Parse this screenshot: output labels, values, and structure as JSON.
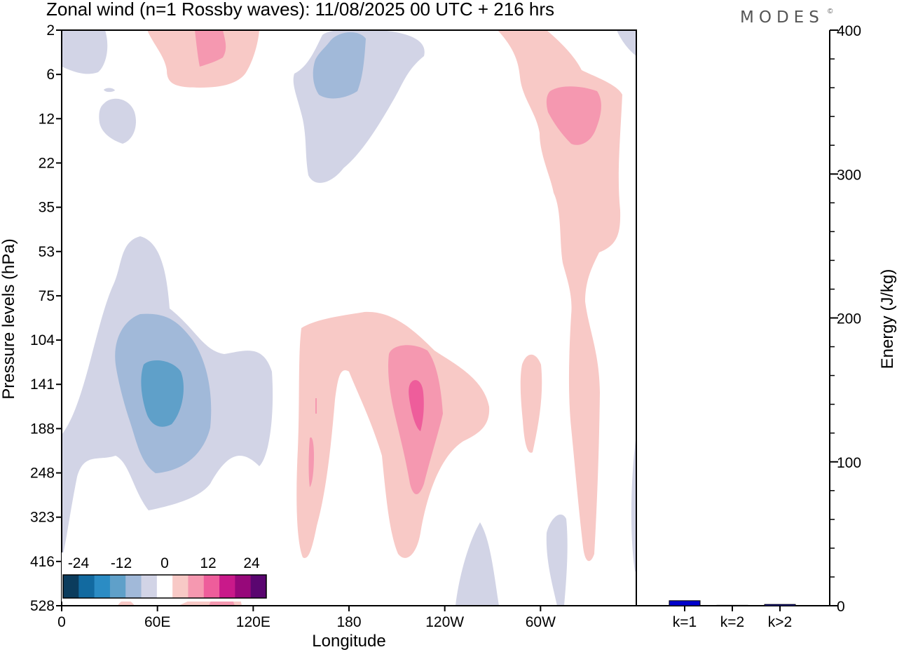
{
  "title": "Zonal wind (n=1 Rossby waves):  11/08/2025  00 UTC  + 216 hrs",
  "logo": "MODES",
  "logo_mark": "©",
  "chart_data": [
    {
      "type": "heatmap",
      "title": "Zonal wind (n=1 Rossby waves):  11/08/2025  00 UTC  + 216 hrs",
      "xlabel": "Longitude",
      "ylabel": "Pressure levels (hPa)",
      "x_ticks": [
        "0",
        "60E",
        "120E",
        "180",
        "120W",
        "60W"
      ],
      "x_tick_values": [
        0,
        60,
        120,
        180,
        240,
        300
      ],
      "xlim": [
        0,
        360
      ],
      "y_ticks": [
        "2",
        "6",
        "12",
        "22",
        "35",
        "53",
        "75",
        "104",
        "141",
        "188",
        "248",
        "323",
        "416",
        "528"
      ],
      "y_scale": "pressure levels (top 2 hPa, bottom 528 hPa)",
      "colorbar": {
        "labels": [
          "-24",
          "-12",
          "0",
          "12",
          "24"
        ],
        "colors": [
          "#0b3c5d",
          "#126aa0",
          "#2b8cc4",
          "#5fa0c9",
          "#a1b9d9",
          "#d2d4e6",
          "#ffffff",
          "#f8c9c6",
          "#f598b0",
          "#ee5d9b",
          "#c9198a",
          "#97087a",
          "#5a0670"
        ]
      },
      "regions": [
        {
          "sign": "negative",
          "level": 1,
          "lon_range": [
            0,
            125
          ],
          "p_range": [
            35,
            416
          ],
          "note": "broad easterly lobe"
        },
        {
          "sign": "negative",
          "level": 2,
          "lon_range": [
            33,
            95
          ],
          "p_range": [
            90,
            248
          ]
        },
        {
          "sign": "negative",
          "level": 3,
          "lon_range": [
            50,
            77
          ],
          "p_range": [
            125,
            188
          ],
          "note": "core"
        },
        {
          "sign": "negative",
          "level": 1,
          "lon_range": [
            145,
            230
          ],
          "p_range": [
            2,
            22
          ]
        },
        {
          "sign": "negative",
          "level": 2,
          "lon_range": [
            157,
            190
          ],
          "p_range": [
            2,
            10
          ]
        },
        {
          "sign": "negative",
          "level": 1,
          "lon_range": [
            24,
            50
          ],
          "p_range": [
            10,
            16
          ]
        },
        {
          "sign": "positive",
          "level": 1,
          "lon_range": [
            65,
            125
          ],
          "p_range": [
            2,
            7
          ]
        },
        {
          "sign": "positive",
          "level": 2,
          "lon_range": [
            85,
            105
          ],
          "p_range": [
            2,
            5
          ]
        },
        {
          "sign": "positive",
          "level": 1,
          "lon_range": [
            150,
            275
          ],
          "p_range": [
            85,
            416
          ],
          "note": "westerly lobe"
        },
        {
          "sign": "positive",
          "level": 2,
          "lon_range": [
            205,
            240
          ],
          "p_range": [
            120,
            323
          ]
        },
        {
          "sign": "positive",
          "level": 3,
          "lon_range": [
            220,
            230
          ],
          "p_range": [
            141,
            200
          ]
        },
        {
          "sign": "positive",
          "level": 1,
          "lon_range": [
            280,
            350
          ],
          "p_range": [
            2,
            416
          ],
          "note": "tilted westerly band"
        },
        {
          "sign": "positive",
          "level": 2,
          "lon_range": [
            305,
            340
          ],
          "p_range": [
            8,
            18
          ]
        },
        {
          "sign": "negative",
          "level": 1,
          "lon_range": [
            245,
            285
          ],
          "p_range": [
            323,
            528
          ]
        },
        {
          "sign": "negative",
          "level": 1,
          "lon_range": [
            302,
            318
          ],
          "p_range": [
            300,
            528
          ]
        }
      ]
    },
    {
      "type": "bar",
      "categories": [
        "k=1",
        "k=2",
        "k>2"
      ],
      "values": [
        3.5,
        0.3,
        0.9
      ],
      "ylabel": "Energy (J/kg)",
      "ylim": [
        0,
        400
      ],
      "y_ticks": [
        "0",
        "100",
        "200",
        "300",
        "400"
      ],
      "bar_color": "#0000cc"
    }
  ]
}
